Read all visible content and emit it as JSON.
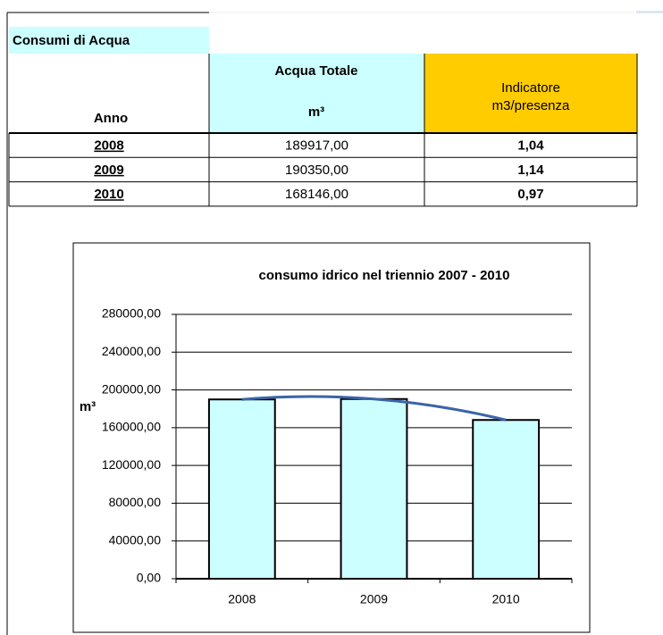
{
  "table": {
    "title": "Consumi di Acqua",
    "headers": {
      "year": "Anno",
      "total": "Acqua Totale",
      "unit": "m³",
      "indicator_line1": "Indicatore",
      "indicator_line2": "m3/presenza"
    },
    "rows": [
      [
        "2008",
        "189917,00",
        "1,04"
      ],
      [
        "2009",
        "190350,00",
        "1,14"
      ],
      [
        "2010",
        "168146,00",
        "0,97"
      ]
    ]
  },
  "chart_data": {
    "type": "bar",
    "title": "consumo idrico nel triennio  2007 - 2010",
    "y_label": "m³",
    "categories": [
      "2008",
      "2009",
      "2010"
    ],
    "values": [
      189917,
      190350,
      168146
    ],
    "color": "#ccffff",
    "trendline_color": "#3b64a8",
    "trendline": true,
    "grid": true,
    "ylim": [
      0,
      280000
    ],
    "yticks": [
      {
        "value": 0,
        "label": "0,00"
      },
      {
        "value": 40000,
        "label": "40000,00"
      },
      {
        "value": 80000,
        "label": "80000,00"
      },
      {
        "value": 120000,
        "label": "120000,00"
      },
      {
        "value": 160000,
        "label": "160000,00"
      },
      {
        "value": 200000,
        "label": "200000,00"
      },
      {
        "value": 240000,
        "label": "240000,00"
      },
      {
        "value": 280000,
        "label": "280000,00"
      }
    ]
  }
}
